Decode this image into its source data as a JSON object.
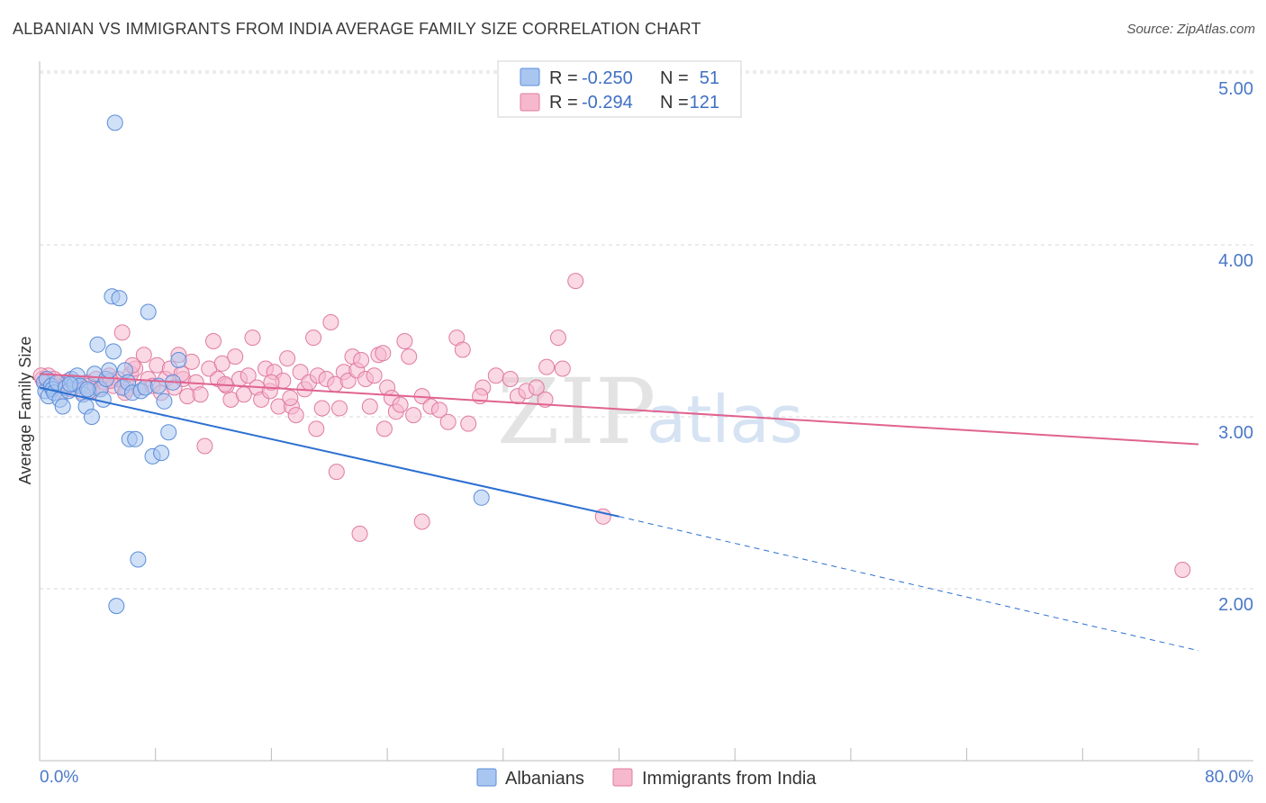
{
  "title": "ALBANIAN VS IMMIGRANTS FROM INDIA AVERAGE FAMILY SIZE CORRELATION CHART",
  "source": "Source: ZipAtlas.com",
  "watermark": {
    "zip": "ZIP",
    "atlas": "atlas"
  },
  "colors": {
    "albanian_fill": "#a9c6f1",
    "albanian_stroke": "#5b8ed9",
    "albanian_line": "#2c6fd1",
    "india_fill": "#f6b8cd",
    "india_stroke": "#e07ba0",
    "india_line": "#e0638f",
    "grid": "#d9d9d9",
    "axis": "#bbbbbb",
    "tick_text": "#4a78c8"
  },
  "legend": {
    "rows": [
      {
        "r_label": "R = ",
        "r_value": "-0.250",
        "n_label": "N = ",
        "n_value": "51"
      },
      {
        "r_label": "R = ",
        "r_value": "-0.294",
        "n_label": "N = ",
        "n_value": "121"
      }
    ]
  },
  "chart_data": {
    "type": "scatter",
    "title": "ALBANIAN VS IMMIGRANTS FROM INDIA AVERAGE FAMILY SIZE CORRELATION CHART",
    "xlabel": "",
    "ylabel": "Average Family Size",
    "xlim": [
      0,
      80
    ],
    "ylim": [
      1.0,
      5.1
    ],
    "x_edge_labels": [
      "0.0%",
      "80.0%"
    ],
    "y_ticks": [
      2.0,
      3.0,
      4.0,
      5.0
    ],
    "y_tick_labels": [
      "2.00",
      "3.00",
      "4.00",
      "5.00"
    ],
    "grid": true,
    "legend_position": "top-center",
    "series": [
      {
        "name": "Albanians",
        "R": -0.25,
        "N": 51,
        "trend": {
          "x0": 0,
          "y0": 3.17,
          "x1": 40,
          "y1": 2.42,
          "dashed_to_x": 80,
          "dashed_y": 1.64
        },
        "points": [
          [
            0.3,
            3.2
          ],
          [
            0.4,
            3.15
          ],
          [
            0.5,
            3.22
          ],
          [
            0.6,
            3.12
          ],
          [
            0.8,
            3.18
          ],
          [
            0.9,
            3.16
          ],
          [
            1.0,
            3.14
          ],
          [
            1.2,
            3.2
          ],
          [
            1.4,
            3.1
          ],
          [
            1.6,
            3.06
          ],
          [
            1.8,
            3.17
          ],
          [
            2.0,
            3.15
          ],
          [
            2.2,
            3.22
          ],
          [
            2.4,
            3.19
          ],
          [
            2.6,
            3.24
          ],
          [
            2.8,
            3.18
          ],
          [
            3.0,
            3.13
          ],
          [
            3.2,
            3.06
          ],
          [
            3.4,
            3.15
          ],
          [
            3.6,
            3.0
          ],
          [
            3.8,
            3.25
          ],
          [
            4.0,
            3.42
          ],
          [
            4.2,
            3.16
          ],
          [
            4.4,
            3.1
          ],
          [
            4.6,
            3.22
          ],
          [
            4.8,
            3.27
          ],
          [
            5.0,
            3.7
          ],
          [
            5.1,
            3.38
          ],
          [
            5.2,
            4.71
          ],
          [
            5.3,
            1.9
          ],
          [
            5.5,
            3.69
          ],
          [
            5.7,
            3.17
          ],
          [
            5.9,
            3.27
          ],
          [
            6.1,
            3.2
          ],
          [
            6.2,
            2.87
          ],
          [
            6.4,
            3.14
          ],
          [
            6.6,
            2.87
          ],
          [
            6.8,
            2.17
          ],
          [
            7.0,
            3.15
          ],
          [
            7.3,
            3.17
          ],
          [
            7.5,
            3.61
          ],
          [
            7.8,
            2.77
          ],
          [
            8.2,
            3.18
          ],
          [
            8.4,
            2.79
          ],
          [
            8.6,
            3.09
          ],
          [
            8.9,
            2.91
          ],
          [
            9.2,
            3.2
          ],
          [
            9.6,
            3.33
          ],
          [
            3.3,
            3.16
          ],
          [
            2.1,
            3.19
          ],
          [
            30.5,
            2.53
          ]
        ]
      },
      {
        "name": "Immigrants from India",
        "R": -0.294,
        "N": 121,
        "trend": {
          "x0": 0,
          "y0": 3.25,
          "x1": 80,
          "y1": 2.84
        },
        "points": [
          [
            0.2,
            3.22
          ],
          [
            0.4,
            3.2
          ],
          [
            0.6,
            3.24
          ],
          [
            0.8,
            3.17
          ],
          [
            1.0,
            3.22
          ],
          [
            1.2,
            3.18
          ],
          [
            1.4,
            3.2
          ],
          [
            1.6,
            3.15
          ],
          [
            1.8,
            3.19
          ],
          [
            2.0,
            3.21
          ],
          [
            2.2,
            3.16
          ],
          [
            2.5,
            3.2
          ],
          [
            2.8,
            3.18
          ],
          [
            3.0,
            3.14
          ],
          [
            3.3,
            3.2
          ],
          [
            3.6,
            3.15
          ],
          [
            3.9,
            3.22
          ],
          [
            4.2,
            3.17
          ],
          [
            4.5,
            3.2
          ],
          [
            4.8,
            3.24
          ],
          [
            5.1,
            3.18
          ],
          [
            5.4,
            3.22
          ],
          [
            5.7,
            3.49
          ],
          [
            6.0,
            3.16
          ],
          [
            6.3,
            3.25
          ],
          [
            6.6,
            3.28
          ],
          [
            6.9,
            3.17
          ],
          [
            7.2,
            3.36
          ],
          [
            7.5,
            3.22
          ],
          [
            7.8,
            3.18
          ],
          [
            8.1,
            3.3
          ],
          [
            8.4,
            3.14
          ],
          [
            8.7,
            3.22
          ],
          [
            9.0,
            3.28
          ],
          [
            9.3,
            3.17
          ],
          [
            9.6,
            3.36
          ],
          [
            9.9,
            3.22
          ],
          [
            10.2,
            3.12
          ],
          [
            10.5,
            3.32
          ],
          [
            10.8,
            3.2
          ],
          [
            11.1,
            3.13
          ],
          [
            11.4,
            2.83
          ],
          [
            11.7,
            3.28
          ],
          [
            12.0,
            3.44
          ],
          [
            12.3,
            3.22
          ],
          [
            12.6,
            3.31
          ],
          [
            12.9,
            3.18
          ],
          [
            13.2,
            3.1
          ],
          [
            13.5,
            3.35
          ],
          [
            13.8,
            3.22
          ],
          [
            14.1,
            3.13
          ],
          [
            14.4,
            3.24
          ],
          [
            14.7,
            3.46
          ],
          [
            15.0,
            3.17
          ],
          [
            15.3,
            3.1
          ],
          [
            15.6,
            3.28
          ],
          [
            15.9,
            3.15
          ],
          [
            16.2,
            3.26
          ],
          [
            16.5,
            3.06
          ],
          [
            16.8,
            3.21
          ],
          [
            17.1,
            3.34
          ],
          [
            17.4,
            3.06
          ],
          [
            17.7,
            3.01
          ],
          [
            18.0,
            3.26
          ],
          [
            18.3,
            3.16
          ],
          [
            18.6,
            3.2
          ],
          [
            18.9,
            3.46
          ],
          [
            19.2,
            3.24
          ],
          [
            19.5,
            3.05
          ],
          [
            19.8,
            3.22
          ],
          [
            20.1,
            3.55
          ],
          [
            20.4,
            3.19
          ],
          [
            20.7,
            3.05
          ],
          [
            21.0,
            3.26
          ],
          [
            21.3,
            3.21
          ],
          [
            21.6,
            3.35
          ],
          [
            21.9,
            3.27
          ],
          [
            22.2,
            3.33
          ],
          [
            22.5,
            3.22
          ],
          [
            22.8,
            3.06
          ],
          [
            23.1,
            3.24
          ],
          [
            23.4,
            3.36
          ],
          [
            23.7,
            3.37
          ],
          [
            24.0,
            3.17
          ],
          [
            24.3,
            3.11
          ],
          [
            24.6,
            3.03
          ],
          [
            24.9,
            3.07
          ],
          [
            25.2,
            3.44
          ],
          [
            25.5,
            3.35
          ],
          [
            25.8,
            3.01
          ],
          [
            26.4,
            3.12
          ],
          [
            27.0,
            3.06
          ],
          [
            27.6,
            3.04
          ],
          [
            28.2,
            2.97
          ],
          [
            28.8,
            3.46
          ],
          [
            29.2,
            3.39
          ],
          [
            29.6,
            2.96
          ],
          [
            30.6,
            3.17
          ],
          [
            31.5,
            3.24
          ],
          [
            32.5,
            3.22
          ],
          [
            33.0,
            3.12
          ],
          [
            33.6,
            3.15
          ],
          [
            34.3,
            3.17
          ],
          [
            35.0,
            3.29
          ],
          [
            35.8,
            3.46
          ],
          [
            36.1,
            3.28
          ],
          [
            37.0,
            3.79
          ],
          [
            20.5,
            2.68
          ],
          [
            22.1,
            2.32
          ],
          [
            26.4,
            2.39
          ],
          [
            38.9,
            2.42
          ],
          [
            78.9,
            2.11
          ],
          [
            3.4,
            3.18
          ],
          [
            4.9,
            3.21
          ],
          [
            6.4,
            3.3
          ],
          [
            5.9,
            3.14
          ],
          [
            9.8,
            3.25
          ],
          [
            12.8,
            3.19
          ],
          [
            16.0,
            3.2
          ],
          [
            17.3,
            3.11
          ],
          [
            19.1,
            2.93
          ],
          [
            23.8,
            2.93
          ],
          [
            30.4,
            3.12
          ],
          [
            34.9,
            3.1
          ],
          [
            0.1,
            3.24
          ]
        ]
      }
    ]
  },
  "bottom_legend": {
    "items": [
      "Albanians",
      "Immigrants from India"
    ]
  }
}
